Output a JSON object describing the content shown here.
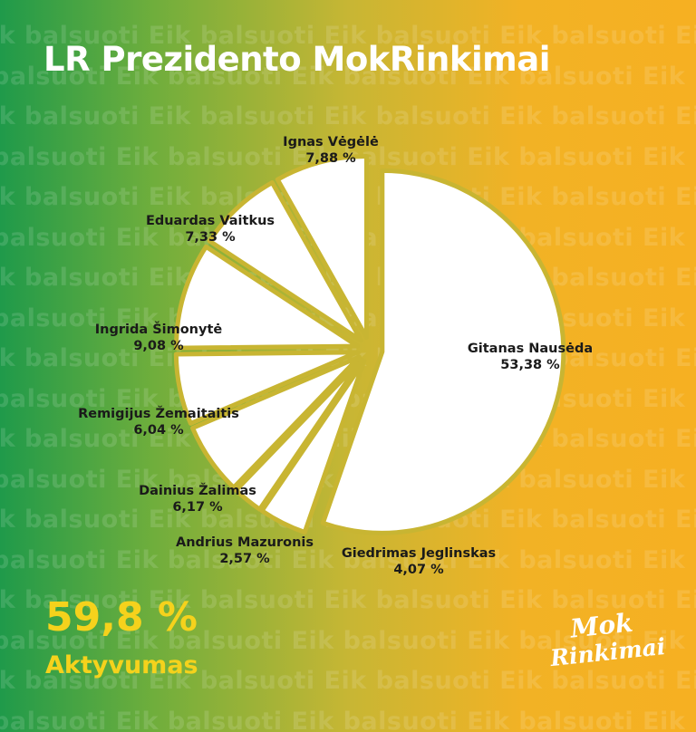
{
  "title": "LR Prezidento MokRinkimai",
  "background_text": "Eik balsuoti",
  "colors": {
    "gradient_left": "#1f9a4a",
    "gradient_right": "#f6b022",
    "slice": "#ffffff",
    "separator": "#c8b532",
    "accent": "#f5d21c"
  },
  "chart_data": {
    "type": "pie",
    "start": "top, clockwise",
    "slices": [
      {
        "name": "Gitanas Nausėda",
        "value": 53.38,
        "label": "53,38 %"
      },
      {
        "name": "Giedrimas Jeglinskas",
        "value": 4.07,
        "label": "4,07 %"
      },
      {
        "name": "Andrius Mazuronis",
        "value": 2.57,
        "label": "2,57 %"
      },
      {
        "name": "Dainius Žalimas",
        "value": 6.17,
        "label": "6,17 %"
      },
      {
        "name": "Remigijus Žemaitaitis",
        "value": 6.04,
        "label": "6,04 %"
      },
      {
        "name": "Ingrida Šimonytė",
        "value": 9.08,
        "label": "9,08 %"
      },
      {
        "name": "Eduardas Vaitkus",
        "value": 7.33,
        "label": "7,33 %"
      },
      {
        "name": "Ignas Vėgėlė",
        "value": 7.88,
        "label": "7,88 %"
      }
    ]
  },
  "turnout": {
    "value": "59,8 %",
    "label": "Aktyvumas"
  },
  "logo": {
    "line1": "Mok",
    "line2": "Rinkimai"
  }
}
